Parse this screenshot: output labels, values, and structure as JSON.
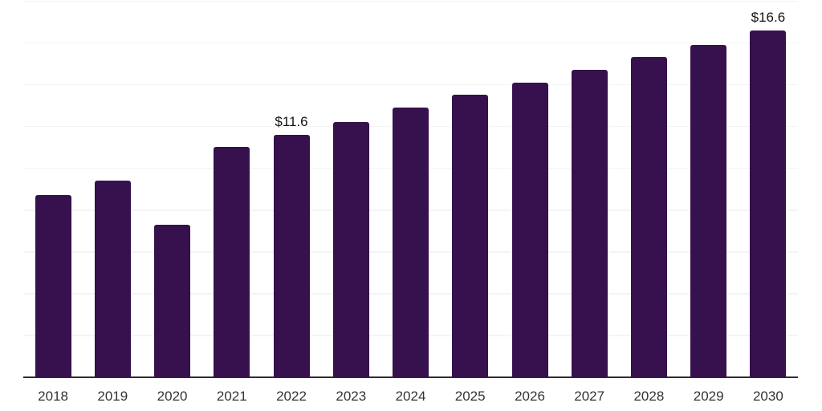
{
  "chart_data": {
    "type": "bar",
    "title": "",
    "xlabel": "",
    "ylabel": "",
    "categories": [
      "2018",
      "2019",
      "2020",
      "2021",
      "2022",
      "2023",
      "2024",
      "2025",
      "2026",
      "2027",
      "2028",
      "2029",
      "2030"
    ],
    "values": [
      8.7,
      9.4,
      7.3,
      11.0,
      11.6,
      12.2,
      12.9,
      13.5,
      14.1,
      14.7,
      15.3,
      15.9,
      16.6
    ],
    "bar_labels": [
      {
        "category": "2022",
        "text": "$11.6"
      },
      {
        "category": "2030",
        "text": "$16.6"
      }
    ],
    "ylim": [
      0,
      18
    ],
    "grid_step": 2,
    "grid": "horizontal",
    "y_tick_labels_visible": false,
    "legend_position": "none",
    "colors": {
      "bar": "#36114D",
      "gridline": "#f4f4f4",
      "axis_line": "#2d2d2d",
      "x_tick_label": "#333333",
      "bar_value_label": "#141414",
      "background": "#ffffff"
    }
  }
}
